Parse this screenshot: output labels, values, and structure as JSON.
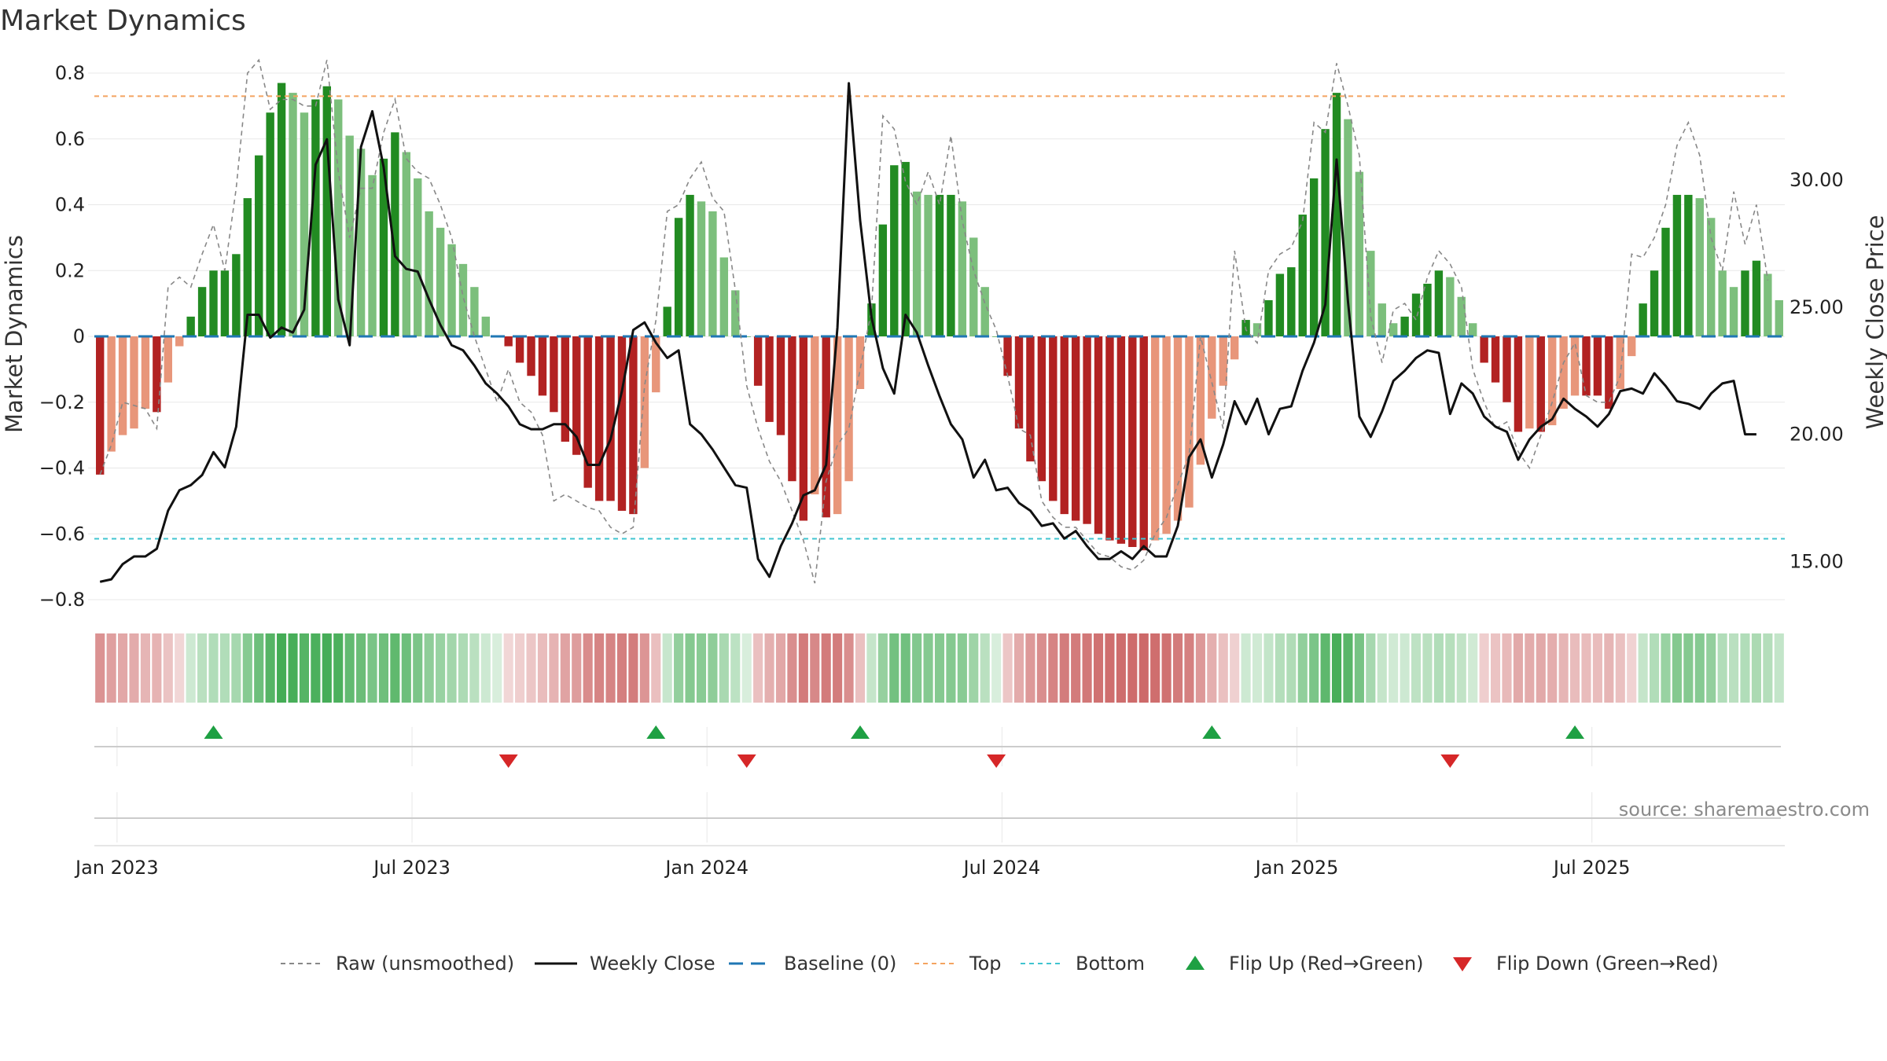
{
  "title": "Market Dynamics",
  "source": "source: sharemaestro.com",
  "colors": {
    "strong_green": "#228b22",
    "light_green": "#7cbf7c",
    "strong_red": "#b22222",
    "light_red": "#e8967a",
    "raw_line": "#888888",
    "close_line": "#111111",
    "baseline": "#1f77b4",
    "top": "#f4a460",
    "bottom": "#40c4d0",
    "flip_up": "#1ea043",
    "flip_down": "#d62728"
  },
  "chart_data": {
    "type": "bar",
    "title": "Market Dynamics",
    "ylabel": "Market Dynamics",
    "y2label": "Weekly Close Price",
    "ylim": [
      -0.8,
      0.8
    ],
    "y2lim": [
      13.5,
      34.2
    ],
    "yticks": [
      "0.8",
      "0.6",
      "0.4",
      "0.2",
      "0",
      "−0.2",
      "−0.4",
      "−0.6",
      "−0.8"
    ],
    "yticks_values": [
      0.8,
      0.6,
      0.4,
      0.2,
      0,
      -0.2,
      -0.4,
      -0.6,
      -0.8
    ],
    "y2ticks": [
      "30.00",
      "25.00",
      "20.00",
      "15.00"
    ],
    "y2ticks_values": [
      30,
      25,
      20,
      15
    ],
    "xticks": [
      "Jan 2023",
      "Jul 2023",
      "Jan 2024",
      "Jul 2024",
      "Jan 2025",
      "Jul 2025"
    ],
    "xticks_week_index": [
      2,
      28,
      54,
      80,
      106,
      132
    ],
    "reference_lines": {
      "baseline": 0,
      "top": 0.73,
      "bottom": -0.615
    },
    "flip_up_weeks": [
      10,
      49,
      67,
      98,
      130
    ],
    "flip_down_weeks": [
      36,
      57,
      79,
      119
    ],
    "smoothed": [
      -0.42,
      -0.35,
      -0.3,
      -0.28,
      -0.22,
      -0.23,
      -0.14,
      -0.03,
      0.06,
      0.15,
      0.2,
      0.2,
      0.25,
      0.42,
      0.55,
      0.68,
      0.77,
      0.74,
      0.68,
      0.72,
      0.76,
      0.72,
      0.61,
      0.57,
      0.49,
      0.54,
      0.62,
      0.56,
      0.48,
      0.38,
      0.33,
      0.28,
      0.22,
      0.15,
      0.06,
      0.0,
      -0.03,
      -0.08,
      -0.12,
      -0.18,
      -0.23,
      -0.32,
      -0.36,
      -0.46,
      -0.5,
      -0.5,
      -0.53,
      -0.54,
      -0.4,
      -0.17,
      0.09,
      0.36,
      0.43,
      0.41,
      0.38,
      0.24,
      0.14,
      0.0,
      -0.15,
      -0.26,
      -0.3,
      -0.44,
      -0.56,
      -0.48,
      -0.55,
      -0.54,
      -0.44,
      -0.16,
      0.1,
      0.34,
      0.52,
      0.53,
      0.44,
      0.43,
      0.43,
      0.43,
      0.41,
      0.3,
      0.15,
      0.0,
      -0.12,
      -0.28,
      -0.38,
      -0.44,
      -0.5,
      -0.54,
      -0.56,
      -0.57,
      -0.6,
      -0.62,
      -0.63,
      -0.64,
      -0.65,
      -0.62,
      -0.6,
      -0.56,
      -0.52,
      -0.39,
      -0.25,
      -0.15,
      -0.07,
      0.05,
      0.04,
      0.11,
      0.19,
      0.21,
      0.37,
      0.48,
      0.63,
      0.74,
      0.66,
      0.5,
      0.26,
      0.1,
      0.04,
      0.06,
      0.13,
      0.16,
      0.2,
      0.18,
      0.12,
      0.04,
      -0.08,
      -0.14,
      -0.2,
      -0.29,
      -0.28,
      -0.29,
      -0.27,
      -0.22,
      -0.18,
      -0.18,
      -0.18,
      -0.22,
      -0.16,
      -0.06,
      0.1,
      0.2,
      0.33,
      0.43,
      0.43,
      0.42,
      0.36,
      0.2,
      0.15,
      0.2,
      0.23,
      0.19,
      0.11
    ],
    "raw": [
      -0.42,
      -0.33,
      -0.2,
      -0.21,
      -0.22,
      -0.28,
      0.15,
      0.18,
      0.15,
      0.25,
      0.34,
      0.2,
      0.45,
      0.8,
      0.84,
      0.69,
      0.72,
      0.72,
      0.7,
      0.7,
      0.84,
      0.5,
      0.3,
      0.45,
      0.45,
      0.62,
      0.72,
      0.54,
      0.5,
      0.48,
      0.4,
      0.3,
      0.12,
      0.0,
      -0.1,
      -0.2,
      -0.1,
      -0.2,
      -0.23,
      -0.3,
      -0.5,
      -0.48,
      -0.5,
      -0.52,
      -0.53,
      -0.58,
      -0.6,
      -0.58,
      -0.15,
      0.05,
      0.38,
      0.4,
      0.48,
      0.53,
      0.42,
      0.38,
      0.14,
      -0.15,
      -0.28,
      -0.38,
      -0.44,
      -0.53,
      -0.62,
      -0.75,
      -0.44,
      -0.33,
      -0.28,
      -0.1,
      0.08,
      0.67,
      0.63,
      0.47,
      0.4,
      0.5,
      0.4,
      0.61,
      0.35,
      0.2,
      0.1,
      0.02,
      -0.12,
      -0.28,
      -0.3,
      -0.5,
      -0.55,
      -0.58,
      -0.58,
      -0.62,
      -0.66,
      -0.67,
      -0.7,
      -0.71,
      -0.68,
      -0.6,
      -0.55,
      -0.45,
      -0.36,
      0.0,
      -0.14,
      -0.28,
      0.26,
      0.02,
      -0.02,
      0.2,
      0.25,
      0.27,
      0.35,
      0.65,
      0.62,
      0.83,
      0.7,
      0.55,
      0.06,
      -0.08,
      0.08,
      0.1,
      0.05,
      0.18,
      0.26,
      0.22,
      0.15,
      -0.1,
      -0.2,
      -0.28,
      -0.26,
      -0.35,
      -0.4,
      -0.3,
      -0.2,
      -0.08,
      -0.02,
      -0.18,
      -0.2,
      -0.2,
      -0.12,
      0.25,
      0.24,
      0.3,
      0.4,
      0.58,
      0.65,
      0.55,
      0.3,
      0.2,
      0.44,
      0.28,
      0.4,
      0.17
    ],
    "close": [
      14.2,
      14.3,
      14.9,
      15.2,
      15.2,
      15.5,
      17.0,
      17.8,
      18.0,
      18.4,
      19.3,
      18.7,
      20.3,
      24.7,
      24.7,
      23.8,
      24.2,
      24.0,
      24.9,
      30.6,
      31.6,
      25.3,
      23.5,
      31.3,
      32.7,
      30.5,
      27.0,
      26.5,
      26.4,
      25.3,
      24.3,
      23.5,
      23.3,
      22.7,
      22.0,
      21.6,
      21.1,
      20.4,
      20.2,
      20.2,
      20.4,
      20.4,
      19.9,
      18.8,
      18.8,
      19.8,
      21.7,
      24.1,
      24.4,
      23.6,
      23.0,
      23.3,
      20.4,
      20.0,
      19.4,
      18.7,
      18.0,
      17.9,
      15.1,
      14.4,
      15.6,
      16.5,
      17.6,
      17.8,
      18.8,
      24.2,
      33.8,
      28.4,
      24.6,
      22.6,
      21.6,
      24.7,
      24.0,
      22.7,
      21.5,
      20.4,
      19.8,
      18.3,
      19.0,
      17.8,
      17.9,
      17.3,
      17.0,
      16.4,
      16.5,
      15.9,
      16.2,
      15.6,
      15.1,
      15.1,
      15.4,
      15.1,
      15.6,
      15.2,
      15.2,
      16.4,
      19.1,
      19.8,
      18.3,
      19.6,
      21.3,
      20.4,
      21.4,
      20.0,
      21.0,
      21.1,
      22.5,
      23.6,
      25.1,
      30.8,
      25.2,
      20.7,
      19.9,
      20.9,
      22.1,
      22.5,
      23.0,
      23.3,
      23.2,
      20.8,
      22.0,
      21.6,
      20.7,
      20.3,
      20.1,
      19.0,
      19.8,
      20.3,
      20.6,
      21.4,
      21.0,
      20.7,
      20.3,
      20.8,
      21.7,
      21.8,
      21.6,
      22.4,
      21.9,
      21.3,
      21.2,
      21.0,
      21.6,
      22.0,
      22.1,
      20.0,
      20.0
    ]
  },
  "legend": [
    {
      "key": "raw",
      "label": "Raw (unsmoothed)"
    },
    {
      "key": "close",
      "label": "Weekly Close"
    },
    {
      "key": "baseline",
      "label": "Baseline (0)"
    },
    {
      "key": "top",
      "label": "Top"
    },
    {
      "key": "bottom",
      "label": "Bottom"
    },
    {
      "key": "flip_up",
      "label": "Flip Up (Red→Green)"
    },
    {
      "key": "flip_down",
      "label": "Flip Down (Green→Red)"
    }
  ]
}
